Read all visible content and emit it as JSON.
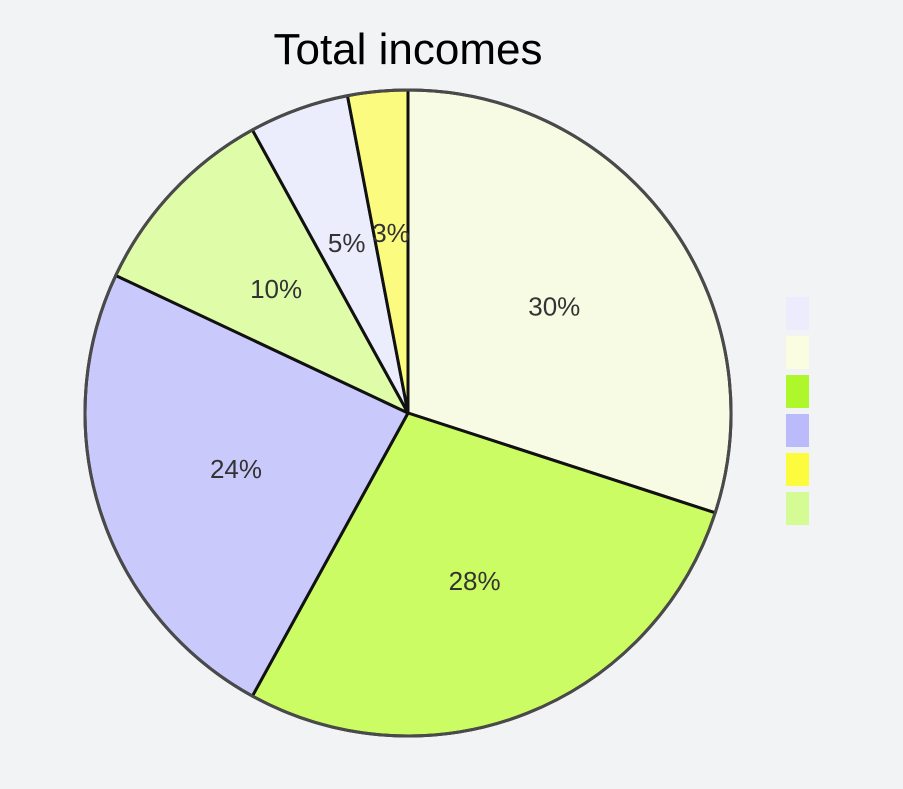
{
  "chart_data": {
    "type": "pie",
    "title": "Total incomes",
    "slices": [
      {
        "value": 30,
        "label": "30%",
        "color": "#f8fbe4"
      },
      {
        "value": 28,
        "label": "28%",
        "color": "#ccfc63"
      },
      {
        "value": 24,
        "label": "24%",
        "color": "#cac9fc"
      },
      {
        "value": 10,
        "label": "10%",
        "color": "#dffca9"
      },
      {
        "value": 5,
        "label": "5%",
        "color": "#ecedfc"
      },
      {
        "value": 3,
        "label": "3%",
        "color": "#fbfc7f"
      }
    ],
    "start_angle_deg": 0,
    "direction": "clockwise",
    "legend": {
      "placement": "right",
      "swatch_colors": [
        "#ececfc",
        "#fbfde0",
        "#aef72b",
        "#bbbafa",
        "#fdfb3d",
        "#d5fc94"
      ]
    }
  }
}
